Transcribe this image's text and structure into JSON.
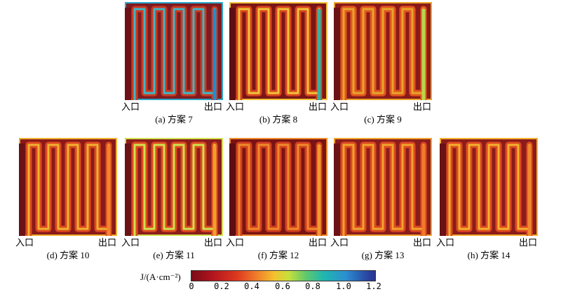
{
  "inlet_label": "入口",
  "outlet_label": "出口",
  "panels": [
    {
      "caption": "(a) 方案 7",
      "variant": "a"
    },
    {
      "caption": "(b) 方案 8",
      "variant": "b"
    },
    {
      "caption": "(c) 方案 9",
      "variant": "c"
    },
    {
      "caption": "(d) 方案 10",
      "variant": "d"
    },
    {
      "caption": "(e) 方案 11",
      "variant": "e"
    },
    {
      "caption": "(f) 方案 12",
      "variant": "f"
    },
    {
      "caption": "(g) 方案 13",
      "variant": "g"
    },
    {
      "caption": "(h) 方案 14",
      "variant": "h"
    }
  ],
  "colorbar": {
    "title": "J/(A·cm⁻²)",
    "ticks": [
      "0",
      "0.2",
      "0.4",
      "0.6",
      "0.8",
      "1.0",
      "1.2"
    ],
    "min": 0,
    "max": 1.2
  }
}
